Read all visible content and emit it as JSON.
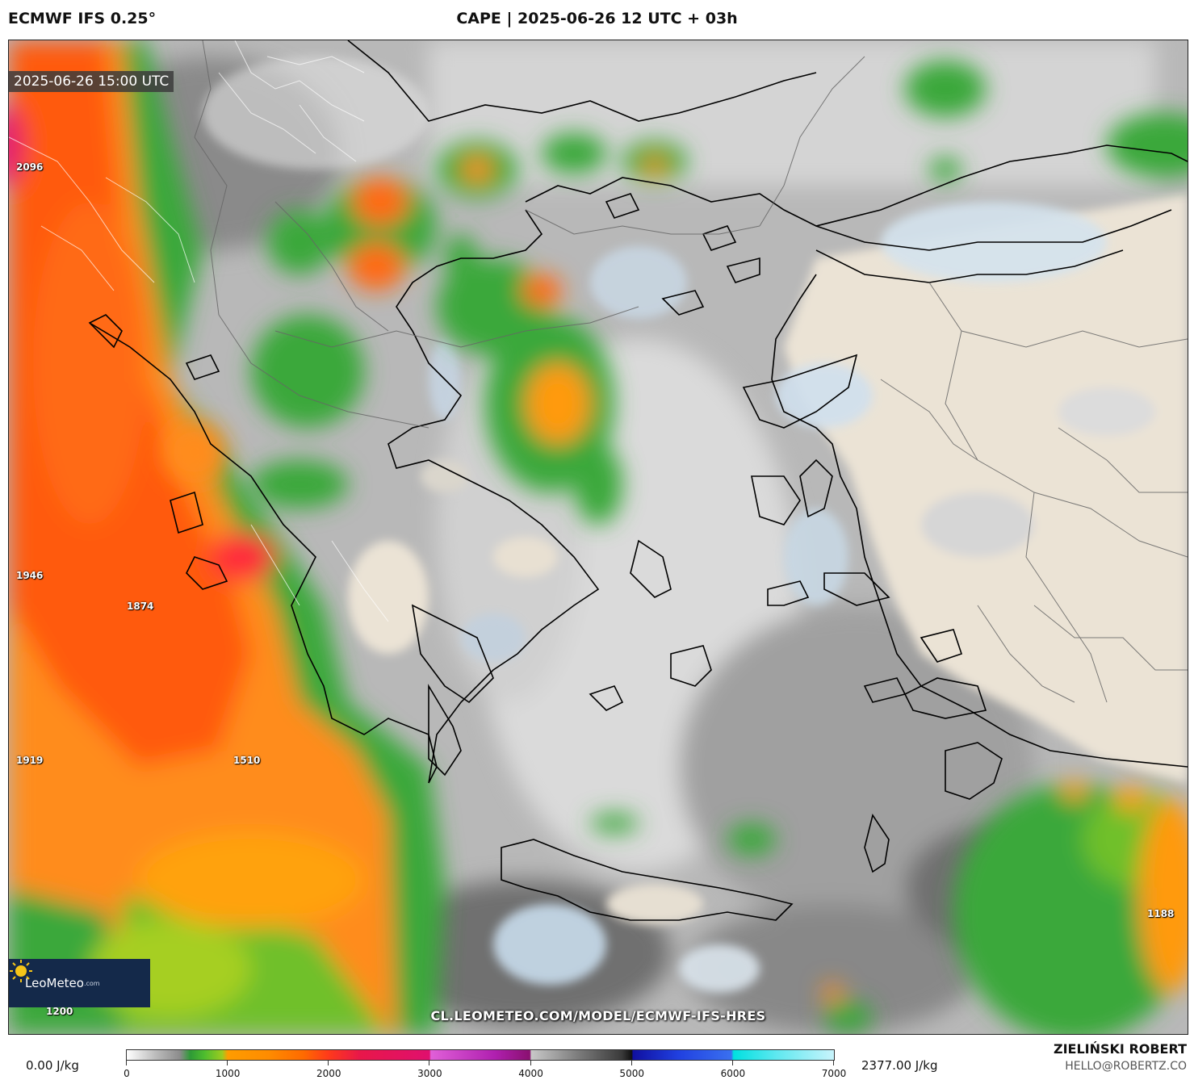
{
  "header": {
    "model": "ECMWF IFS 0.25°",
    "title": "CAPE | 2025-06-26 12 UTC + 03h"
  },
  "map": {
    "valid_time": "2025-06-26 15:00 UTC",
    "value_labels": [
      "2096",
      "1946",
      "1874",
      "1919",
      "1510",
      "1188",
      "1200"
    ],
    "url": "CL.LEOMETEO.COM/MODEL/ECMWF-IFS-HRES",
    "logo": {
      "name": "LeoMeteo",
      "suffix": ".com",
      "icon": "sun-icon"
    }
  },
  "colorbar": {
    "min_label": "0.00 J/kg",
    "max_label": "2377.00 J/kg",
    "ticks": [
      "0",
      "1000",
      "2000",
      "3000",
      "4000",
      "5000",
      "6000",
      "7000"
    ]
  },
  "credits": {
    "author": "ZIELIŃSKI ROBERT",
    "email": "HELLO@ROBERTZ.CO"
  },
  "colors": {
    "sea_low": "#b5b5b5",
    "land_stable": "#ede6da",
    "green": "#3aa83a",
    "orange": "#ff8c1a",
    "red": "#ff4a14",
    "coast": "#000000"
  }
}
